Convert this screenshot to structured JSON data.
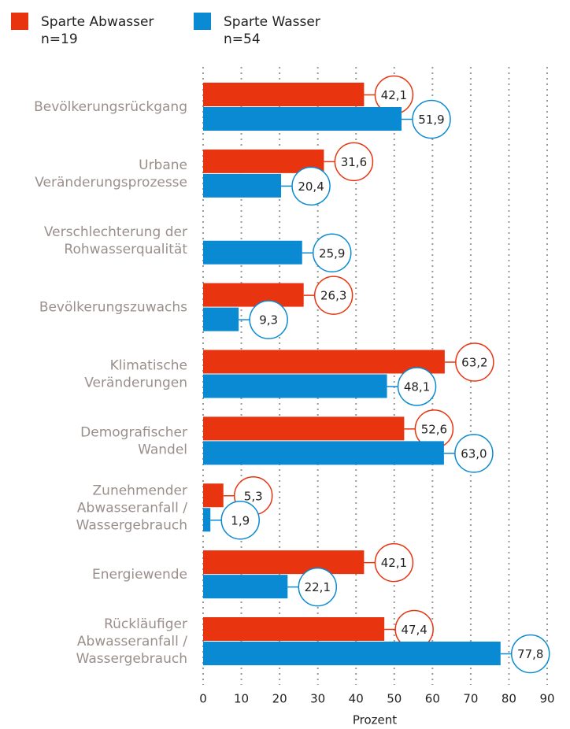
{
  "chart_data": {
    "type": "hbar",
    "categories": [
      [
        "Bevölkerungsrückgang"
      ],
      [
        "Urbane",
        "Veränderungsprozesse"
      ],
      [
        "Verschlechterung der",
        "Rohwasserqualität"
      ],
      [
        "Bevölkerungszuwachs"
      ],
      [
        "Klimatische",
        "Veränderungen"
      ],
      [
        "Demografischer",
        "Wandel"
      ],
      [
        "Zunehmender",
        "Abwasseranfall /",
        "Wassergebrauch"
      ],
      [
        "Energiewende"
      ],
      [
        "Rückläufiger",
        "Abwasseranfall /",
        "Wassergebrauch"
      ]
    ],
    "series": [
      {
        "name": "Sparte Abwasser",
        "note": "n=19",
        "color": "#e8340f",
        "values": [
          42.1,
          31.6,
          null,
          26.3,
          63.2,
          52.6,
          5.3,
          42.1,
          47.4
        ],
        "value_labels": [
          "42,1",
          "31,6",
          null,
          "26,3",
          "63,2",
          "52,6",
          "5,3",
          "42,1",
          "47,4"
        ]
      },
      {
        "name": "Sparte Wasser",
        "note": "n=54",
        "color": "#0a8ad2",
        "values": [
          51.9,
          20.4,
          25.9,
          9.3,
          48.1,
          63.0,
          1.9,
          22.1,
          77.8
        ],
        "value_labels": [
          "51,9",
          "20,4",
          "25,9",
          "9,3",
          "48,1",
          "63,0",
          "1,9",
          "22,1",
          "77,8"
        ]
      }
    ],
    "xlabel": "Prozent",
    "xlim": [
      0,
      90
    ],
    "xticks": [
      0,
      10,
      20,
      30,
      40,
      50,
      60,
      70,
      80,
      90
    ],
    "grid": true
  }
}
